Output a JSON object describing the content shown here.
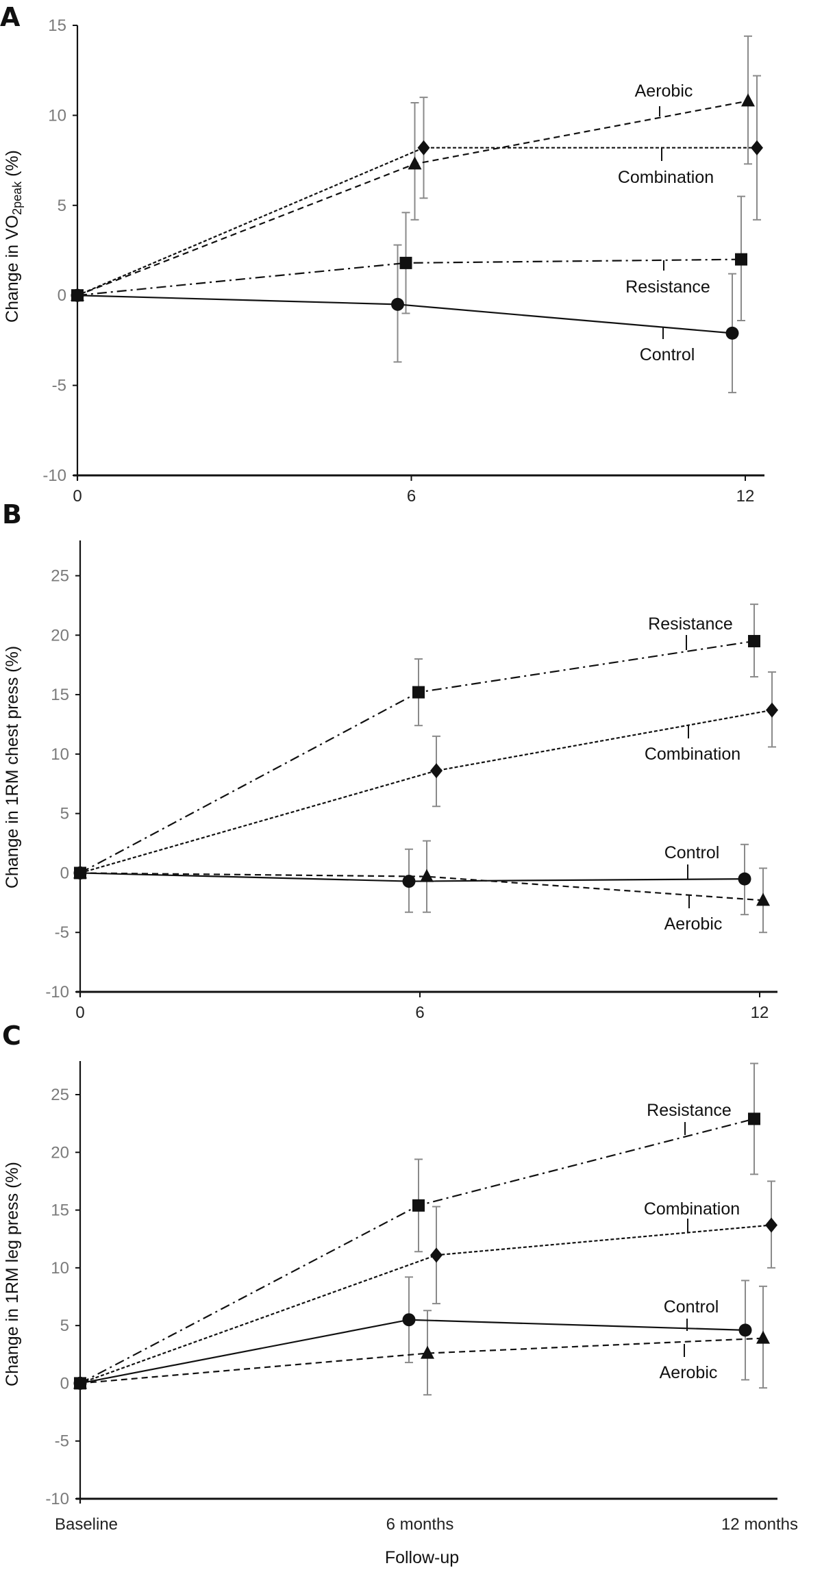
{
  "chart_data": [
    {
      "panel": "A",
      "type": "line",
      "title": "",
      "xlabel": "",
      "ylabel": "Change in VO2peak (%)",
      "ylabel_main": "Change in VO",
      "ylabel_sub": "2peak",
      "ylabel_tail": " (%)",
      "x": [
        0,
        6,
        12
      ],
      "x_tick_labels": [
        "0",
        "6",
        "12"
      ],
      "ylim": [
        -10,
        15
      ],
      "y_ticks": [
        -10,
        -5,
        0,
        5,
        10,
        15
      ],
      "y_tick_labels": [
        "-10",
        "-5",
        "0",
        "5",
        "10",
        "15"
      ],
      "grid": false,
      "series": [
        {
          "name": "Control",
          "marker": "circle",
          "line": "solid",
          "values": [
            0,
            -0.5,
            -2.1
          ],
          "err_upper": [
            0,
            2.8,
            1.2
          ],
          "err_lower": [
            0,
            -3.7,
            -5.4
          ]
        },
        {
          "name": "Resistance",
          "marker": "square",
          "line": "dash-dot",
          "values": [
            0,
            1.8,
            2.0
          ],
          "err_upper": [
            0,
            4.6,
            5.5
          ],
          "err_lower": [
            0,
            -1.0,
            -1.4
          ]
        },
        {
          "name": "Aerobic",
          "marker": "triangle",
          "line": "dashed",
          "values": [
            0,
            7.3,
            10.8
          ],
          "err_upper": [
            0,
            10.7,
            14.4
          ],
          "err_lower": [
            0,
            4.2,
            7.3
          ]
        },
        {
          "name": "Combination",
          "marker": "diamond",
          "line": "dotted",
          "values": [
            0,
            8.2,
            8.2
          ],
          "err_upper": [
            0,
            11.0,
            12.2
          ],
          "err_lower": [
            0,
            5.4,
            4.2
          ]
        }
      ]
    },
    {
      "panel": "B",
      "type": "line",
      "title": "",
      "xlabel": "",
      "ylabel": "Change in 1RM chest press (%)",
      "x": [
        0,
        6,
        12
      ],
      "x_tick_labels": [
        "0",
        "6",
        "12"
      ],
      "ylim": [
        -10,
        28
      ],
      "y_ticks": [
        -10,
        -5,
        0,
        5,
        10,
        15,
        20,
        25
      ],
      "y_tick_labels": [
        "-10",
        "-5",
        "0",
        "5",
        "10",
        "15",
        "20",
        "25"
      ],
      "grid": false,
      "series": [
        {
          "name": "Control",
          "marker": "circle",
          "line": "solid",
          "values": [
            0,
            -0.7,
            -0.5
          ],
          "err_upper": [
            0,
            2.0,
            2.4
          ],
          "err_lower": [
            0,
            -3.3,
            -3.5
          ]
        },
        {
          "name": "Resistance",
          "marker": "square",
          "line": "dash-dot",
          "values": [
            0,
            15.2,
            19.5
          ],
          "err_upper": [
            0,
            18.0,
            22.6
          ],
          "err_lower": [
            0,
            12.4,
            16.5
          ]
        },
        {
          "name": "Aerobic",
          "marker": "triangle",
          "line": "dashed",
          "values": [
            0,
            -0.3,
            -2.3
          ],
          "err_upper": [
            0,
            2.7,
            0.4
          ],
          "err_lower": [
            0,
            -3.3,
            -5.0
          ]
        },
        {
          "name": "Combination",
          "marker": "diamond",
          "line": "dotted",
          "values": [
            0,
            8.6,
            13.7
          ],
          "err_upper": [
            0,
            11.5,
            16.9
          ],
          "err_lower": [
            0,
            5.6,
            10.6
          ]
        }
      ]
    },
    {
      "panel": "C",
      "type": "line",
      "title": "",
      "xlabel": "Follow-up",
      "ylabel": "Change in 1RM leg press (%)",
      "x": [
        0,
        6,
        12
      ],
      "x_tick_labels": [
        "Baseline",
        "6 months",
        "12 months"
      ],
      "ylim": [
        -10,
        28
      ],
      "y_ticks": [
        -10,
        -5,
        0,
        5,
        10,
        15,
        20,
        25
      ],
      "y_tick_labels": [
        "-10",
        "-5",
        "0",
        "5",
        "10",
        "15",
        "20",
        "25"
      ],
      "grid": false,
      "series": [
        {
          "name": "Control",
          "marker": "circle",
          "line": "solid",
          "values": [
            0,
            5.5,
            4.6
          ],
          "err_upper": [
            0,
            9.2,
            8.9
          ],
          "err_lower": [
            0,
            1.8,
            0.3
          ]
        },
        {
          "name": "Resistance",
          "marker": "square",
          "line": "dash-dot",
          "values": [
            0,
            15.4,
            22.9
          ],
          "err_upper": [
            0,
            19.4,
            27.7
          ],
          "err_lower": [
            0,
            11.4,
            18.1
          ]
        },
        {
          "name": "Aerobic",
          "marker": "triangle",
          "line": "dashed",
          "values": [
            0,
            2.6,
            3.9
          ],
          "err_upper": [
            0,
            6.3,
            8.4
          ],
          "err_lower": [
            0,
            -1.0,
            -0.4
          ]
        },
        {
          "name": "Combination",
          "marker": "diamond",
          "line": "dotted",
          "values": [
            0,
            11.1,
            13.7
          ],
          "err_upper": [
            0,
            15.3,
            17.5
          ],
          "err_lower": [
            0,
            6.9,
            10.0
          ]
        }
      ]
    }
  ],
  "panel_letters": [
    "A",
    "B",
    "C"
  ],
  "colors": {
    "series": "#111111",
    "error_bar": "#8a8a8a",
    "tick_label": "#7a7a7a",
    "axis": "#111111"
  }
}
